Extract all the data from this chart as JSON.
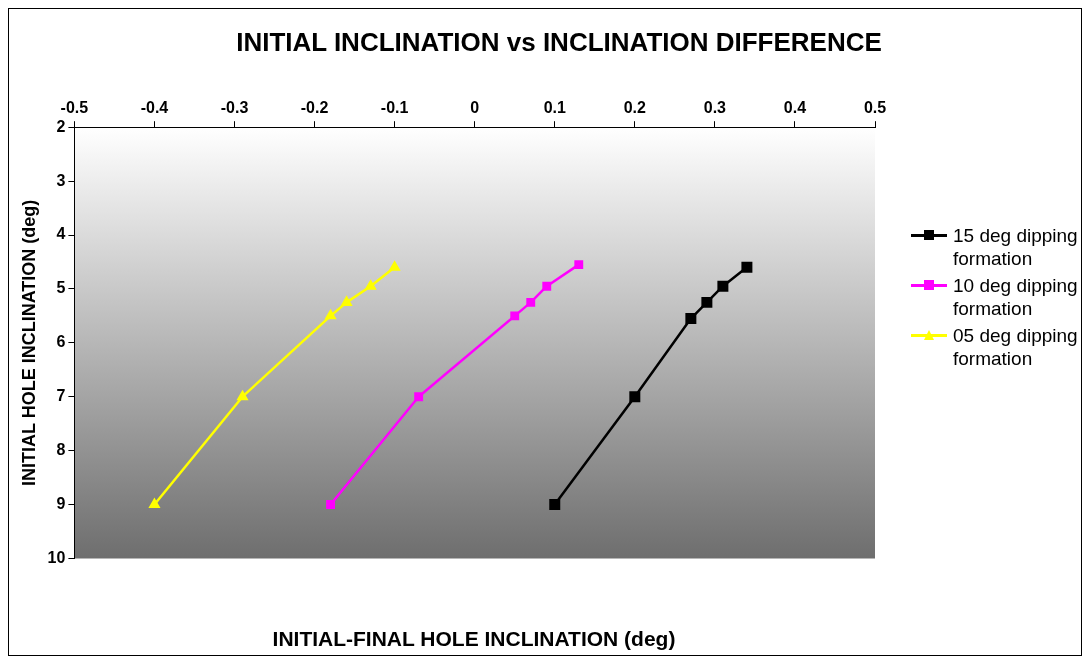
{
  "chart_data": {
    "type": "line",
    "title": "INITIAL INCLINATION vs INCLINATION DIFFERENCE",
    "xlabel": "INITIAL-FINAL HOLE INCLINATION (deg)",
    "ylabel": "INITIAL HOLE INCLINATION (deg)",
    "xlim": [
      -0.5,
      0.5
    ],
    "xticks": [
      -0.5,
      -0.4,
      -0.3,
      -0.2,
      -0.1,
      0,
      0.1,
      0.2,
      0.3,
      0.4,
      0.5
    ],
    "ylim": [
      10,
      2
    ],
    "yticks": [
      2,
      3,
      4,
      5,
      6,
      7,
      8,
      9,
      10
    ],
    "grid": false,
    "legend": "right",
    "series": [
      {
        "name": "15 deg dipping formation",
        "color": "#000000",
        "marker": "square",
        "x": [
          0.34,
          0.31,
          0.29,
          0.27,
          0.2,
          0.1
        ],
        "values": [
          4.6,
          4.95,
          5.25,
          5.55,
          7,
          9
        ]
      },
      {
        "name": "10 deg dipping formation",
        "color": "#ff00ff",
        "marker": "square",
        "x": [
          0.13,
          0.09,
          0.07,
          0.05,
          -0.07,
          -0.18
        ],
        "values": [
          4.55,
          4.95,
          5.25,
          5.5,
          7,
          9
        ]
      },
      {
        "name": "05 deg dipping formation",
        "color": "#ffff00",
        "marker": "triangle",
        "x": [
          -0.1,
          -0.13,
          -0.16,
          -0.18,
          -0.29,
          -0.4
        ],
        "values": [
          4.6,
          4.95,
          5.25,
          5.5,
          7,
          9
        ]
      }
    ]
  }
}
